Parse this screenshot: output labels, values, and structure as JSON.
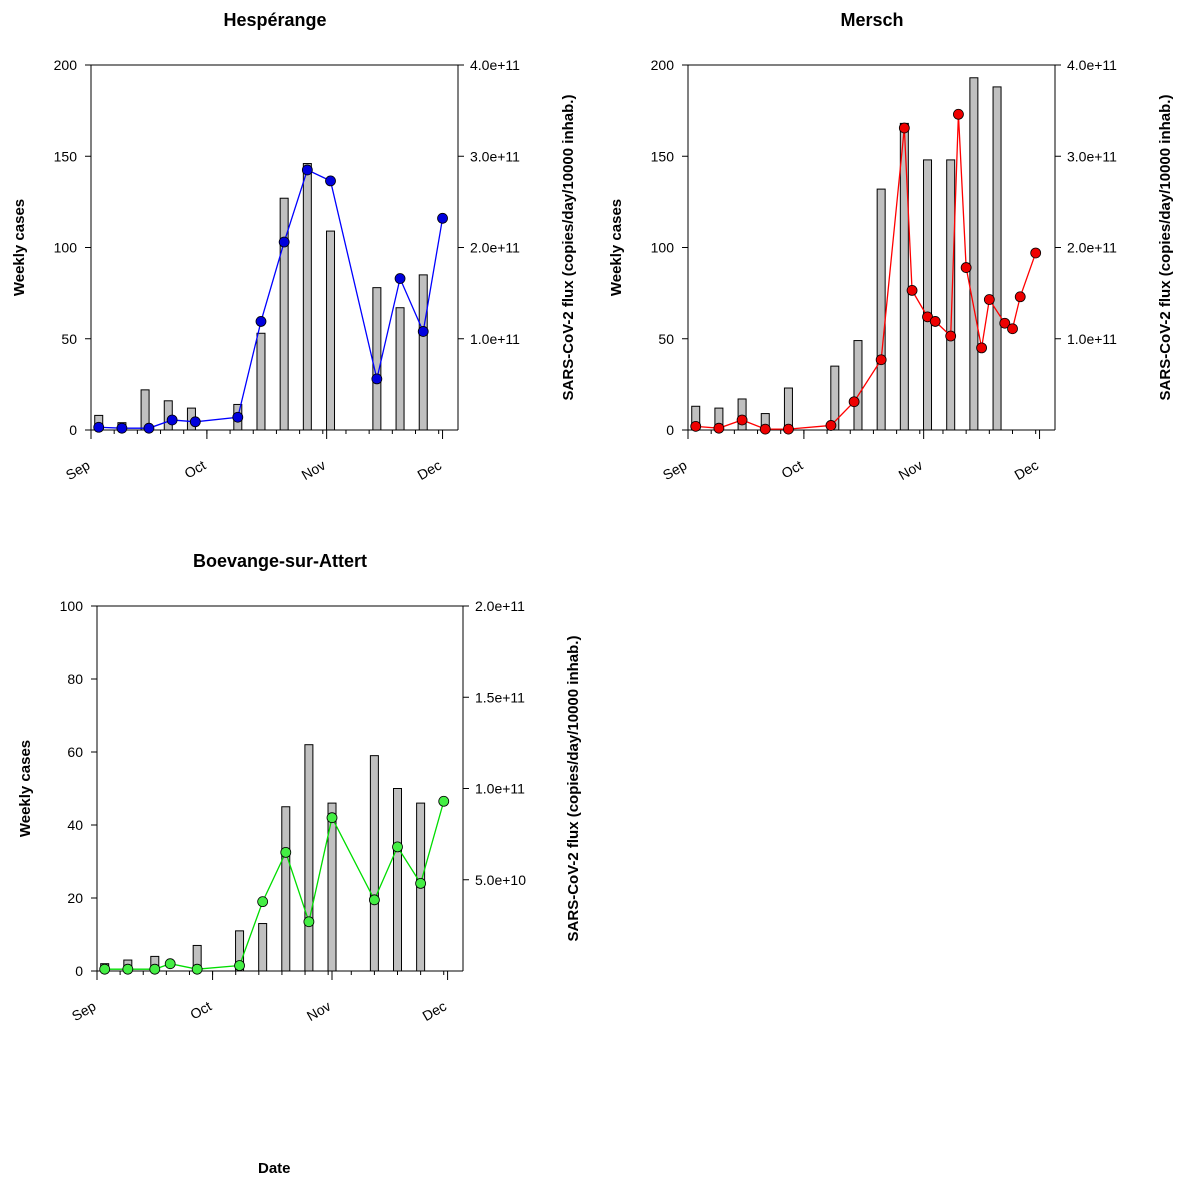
{
  "xlabel": "Date",
  "chart_data": [
    {
      "type": "bar+line",
      "title": "Hespérange",
      "ylabel": "Weekly cases",
      "y2label": "SARS-CoV-2 flux (copies/day/10000 inhab.)",
      "ylim": [
        0,
        200
      ],
      "y2lim": [
        0,
        400000000000
      ],
      "yticks": [
        0,
        50,
        100,
        150,
        200
      ],
      "y2ticks": [
        100000000000,
        200000000000,
        300000000000,
        400000000000
      ],
      "y2ticklabels": [
        "1.0e+11",
        "2.0e+11",
        "3.0e+11",
        "4.0e+11"
      ],
      "xlim": [
        "2020-09-01",
        "2020-12-05"
      ],
      "xticks": [
        "2020-09-01",
        "2020-10-01",
        "2020-11-01",
        "2020-12-01"
      ],
      "xticklabels": [
        "Sep",
        "Oct",
        "Nov",
        "Dec"
      ],
      "line_color": "#0000ff",
      "marker_color": "#0000dd",
      "bar_color": "#c0c0c0",
      "bars": {
        "name": "Weekly cases",
        "x": [
          "2020-09-03",
          "2020-09-09",
          "2020-09-15",
          "2020-09-21",
          "2020-09-27",
          "2020-10-09",
          "2020-10-15",
          "2020-10-21",
          "2020-10-27",
          "2020-11-02",
          "2020-11-14",
          "2020-11-20",
          "2020-11-26"
        ],
        "values": [
          8,
          4,
          22,
          16,
          12,
          14,
          53,
          127,
          146,
          109,
          78,
          67,
          85
        ]
      },
      "line": {
        "name": "SARS-CoV-2 flux",
        "x": [
          "2020-09-03",
          "2020-09-09",
          "2020-09-16",
          "2020-09-22",
          "2020-09-28",
          "2020-10-09",
          "2020-10-15",
          "2020-10-21",
          "2020-10-27",
          "2020-11-02",
          "2020-11-14",
          "2020-11-20",
          "2020-11-26",
          "2020-12-01"
        ],
        "values": [
          3000000000,
          2000000000,
          2000000000,
          11000000000,
          9000000000,
          14000000000,
          119000000000,
          206000000000,
          285000000000,
          273000000000,
          56000000000,
          166000000000,
          108000000000,
          232000000000
        ]
      }
    },
    {
      "type": "bar+line",
      "title": "Mersch",
      "ylabel": "Weekly cases",
      "y2label": "SARS-CoV-2 flux (copies/day/10000 inhab.)",
      "ylim": [
        0,
        200
      ],
      "y2lim": [
        0,
        400000000000
      ],
      "yticks": [
        0,
        50,
        100,
        150,
        200
      ],
      "y2ticks": [
        100000000000,
        200000000000,
        300000000000,
        400000000000
      ],
      "y2ticklabels": [
        "1.0e+11",
        "2.0e+11",
        "3.0e+11",
        "4.0e+11"
      ],
      "xlim": [
        "2020-09-01",
        "2020-12-05"
      ],
      "xticks": [
        "2020-09-01",
        "2020-10-01",
        "2020-11-01",
        "2020-12-01"
      ],
      "xticklabels": [
        "Sep",
        "Oct",
        "Nov",
        "Dec"
      ],
      "line_color": "#ff0000",
      "marker_color": "#ee0000",
      "bar_color": "#c0c0c0",
      "bars": {
        "name": "Weekly cases",
        "x": [
          "2020-09-03",
          "2020-09-09",
          "2020-09-15",
          "2020-09-21",
          "2020-09-27",
          "2020-10-09",
          "2020-10-15",
          "2020-10-21",
          "2020-10-27",
          "2020-11-02",
          "2020-11-08",
          "2020-11-14",
          "2020-11-20"
        ],
        "values": [
          13,
          12,
          17,
          9,
          23,
          35,
          49,
          132,
          168,
          148,
          148,
          193,
          188
        ]
      },
      "line": {
        "name": "SARS-CoV-2 flux",
        "x": [
          "2020-09-03",
          "2020-09-09",
          "2020-09-15",
          "2020-09-21",
          "2020-09-27",
          "2020-10-08",
          "2020-10-14",
          "2020-10-21",
          "2020-10-27",
          "2020-10-29",
          "2020-11-02",
          "2020-11-04",
          "2020-11-08",
          "2020-11-10",
          "2020-11-12",
          "2020-11-16",
          "2020-11-18",
          "2020-11-22",
          "2020-11-24",
          "2020-11-26",
          "2020-11-30"
        ],
        "values": [
          4000000000,
          2000000000,
          11000000000,
          1000000000,
          1000000000,
          5000000000,
          31000000000,
          77000000000,
          331000000000,
          153000000000,
          124000000000,
          119000000000,
          103000000000,
          346000000000,
          178000000000,
          90000000000,
          143000000000,
          117000000000,
          111000000000,
          146000000000,
          194000000000
        ]
      }
    },
    {
      "type": "bar+line",
      "title": "Boevange-sur-Attert",
      "ylabel": "Weekly cases",
      "y2label": "SARS-CoV-2 flux (copies/day/10000 inhab.)",
      "ylim": [
        0,
        100
      ],
      "y2lim": [
        0,
        200000000000
      ],
      "yticks": [
        0,
        20,
        40,
        60,
        80,
        100
      ],
      "y2ticks": [
        50000000000,
        100000000000,
        150000000000,
        200000000000
      ],
      "y2ticklabels": [
        "5.0e+10",
        "1.0e+11",
        "1.5e+11",
        "2.0e+11"
      ],
      "xlim": [
        "2020-09-01",
        "2020-12-05"
      ],
      "xticks": [
        "2020-09-01",
        "2020-10-01",
        "2020-11-01",
        "2020-12-01"
      ],
      "xticklabels": [
        "Sep",
        "Oct",
        "Nov",
        "Dec"
      ],
      "line_color": "#00dd00",
      "marker_color": "#44ee44",
      "bar_color": "#c0c0c0",
      "bars": {
        "name": "Weekly cases",
        "x": [
          "2020-09-03",
          "2020-09-09",
          "2020-09-16",
          "2020-09-27",
          "2020-10-08",
          "2020-10-14",
          "2020-10-20",
          "2020-10-26",
          "2020-11-01",
          "2020-11-12",
          "2020-11-18",
          "2020-11-24"
        ],
        "values": [
          2,
          3,
          4,
          7,
          11,
          13,
          45,
          62,
          46,
          59,
          50,
          46
        ]
      },
      "line": {
        "name": "SARS-CoV-2 flux",
        "x": [
          "2020-09-03",
          "2020-09-09",
          "2020-09-16",
          "2020-09-20",
          "2020-09-27",
          "2020-10-08",
          "2020-10-14",
          "2020-10-20",
          "2020-10-26",
          "2020-11-01",
          "2020-11-12",
          "2020-11-18",
          "2020-11-24",
          "2020-11-30"
        ],
        "values": [
          1000000000,
          1000000000,
          1000000000,
          4000000000,
          1000000000,
          3000000000,
          38000000000,
          65000000000,
          27000000000,
          84000000000,
          39000000000,
          68000000000,
          48000000000,
          93000000000
        ]
      }
    }
  ]
}
